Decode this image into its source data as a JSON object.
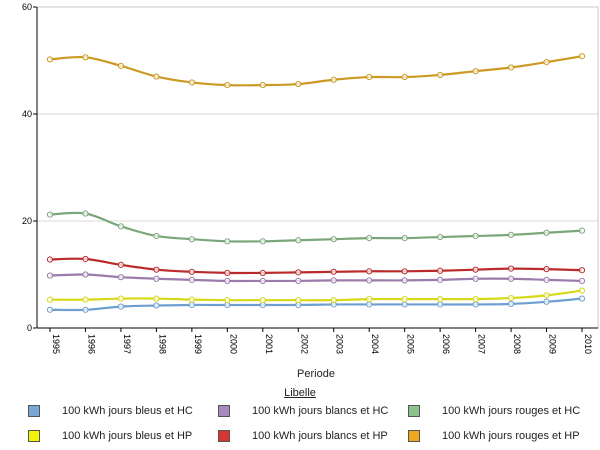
{
  "chart_data": {
    "type": "line",
    "xlabel": "Periode",
    "ylabel": "",
    "legend_title": "Libelle",
    "legend_position": "bottom",
    "grid": "horizontal",
    "ylim": [
      0,
      60
    ],
    "yticks": [
      "0",
      "20",
      "40",
      "60"
    ],
    "x": [
      "1995",
      "1996",
      "1997",
      "1998",
      "1999",
      "2000",
      "2001",
      "2002",
      "2003",
      "2004",
      "2005",
      "2006",
      "2007",
      "2008",
      "2009",
      "2010"
    ],
    "series": [
      {
        "name": "100 kWh jours bleus et HC",
        "color": "#6f9fd0",
        "fill": "#7ba7d6",
        "values": [
          3.4,
          3.4,
          4.0,
          4.2,
          4.3,
          4.3,
          4.3,
          4.3,
          4.4,
          4.4,
          4.4,
          4.4,
          4.4,
          4.5,
          4.9,
          5.5
        ]
      },
      {
        "name": "100 kWh jours blancs et HC",
        "color": "#9a7bab",
        "fill": "#a78bc0",
        "values": [
          9.8,
          10.0,
          9.5,
          9.2,
          9.0,
          8.8,
          8.8,
          8.8,
          8.9,
          8.9,
          8.9,
          9.0,
          9.2,
          9.2,
          9.0,
          8.8
        ]
      },
      {
        "name": "100 kWh jours rouges et HC",
        "color": "#7aa779",
        "fill": "#8bc38a",
        "values": [
          21.2,
          21.4,
          19.0,
          17.2,
          16.6,
          16.2,
          16.2,
          16.4,
          16.6,
          16.8,
          16.8,
          17.0,
          17.2,
          17.4,
          17.8,
          18.2
        ]
      },
      {
        "name": "100 kWh jours bleus et HP",
        "color": "#d8d81a",
        "fill": "#f2f20c",
        "values": [
          5.3,
          5.3,
          5.5,
          5.5,
          5.3,
          5.2,
          5.2,
          5.2,
          5.2,
          5.4,
          5.4,
          5.4,
          5.4,
          5.6,
          6.1,
          7.0
        ]
      },
      {
        "name": "100 kWh jours blancs et HP",
        "color": "#bb2a2a",
        "fill": "#d93434",
        "values": [
          12.8,
          12.9,
          11.8,
          10.9,
          10.5,
          10.3,
          10.3,
          10.4,
          10.5,
          10.6,
          10.6,
          10.7,
          10.9,
          11.1,
          11.0,
          10.8
        ]
      },
      {
        "name": "100 kWh jours rouges et HP",
        "color": "#cc9922",
        "fill": "#f0a91e",
        "values": [
          50.2,
          50.6,
          49.0,
          47.0,
          45.9,
          45.4,
          45.4,
          45.6,
          46.4,
          46.9,
          46.9,
          47.3,
          48.0,
          48.7,
          49.7,
          50.8
        ]
      }
    ]
  }
}
